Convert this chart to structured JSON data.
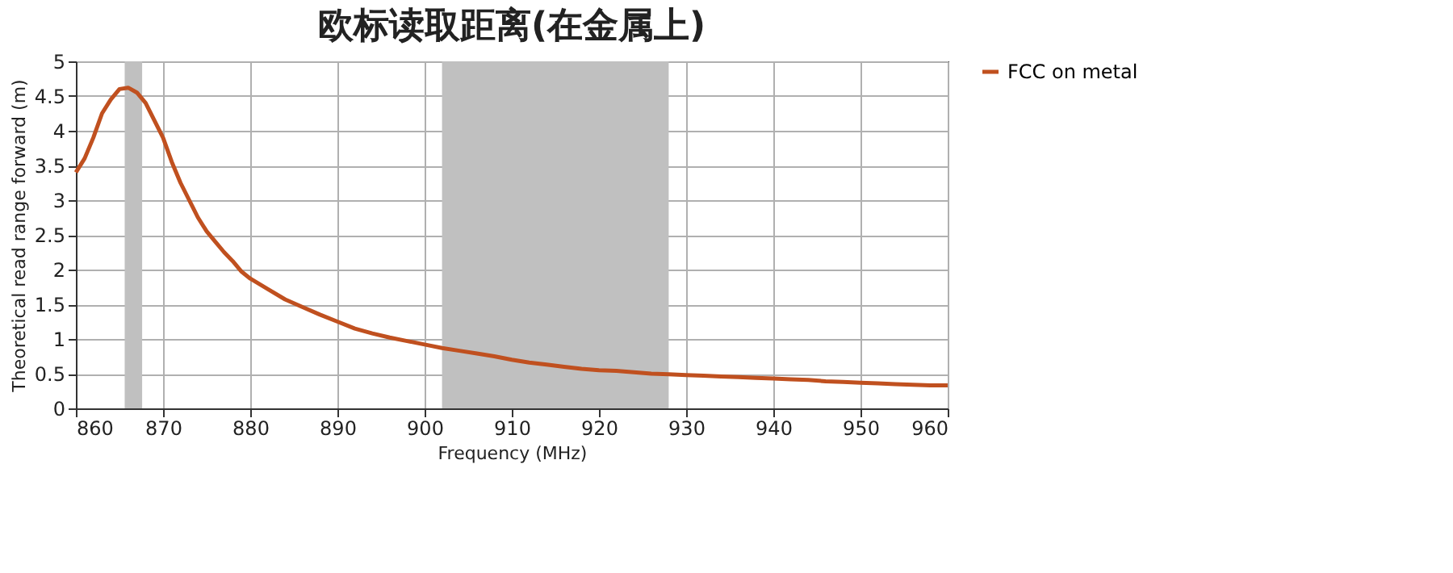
{
  "chart_data": {
    "type": "line",
    "title": "欧标读取距离(在金属上)",
    "xlabel": "Frequency (MHz)",
    "ylabel": "Theoretical read range forward (m)",
    "x": [
      860,
      861,
      862,
      863,
      864,
      865,
      866,
      867,
      868,
      869,
      870,
      871,
      872,
      873,
      874,
      875,
      876,
      877,
      878,
      879,
      880,
      882,
      884,
      886,
      888,
      890,
      892,
      894,
      896,
      898,
      900,
      902,
      904,
      906,
      908,
      910,
      912,
      914,
      916,
      918,
      920,
      922,
      924,
      926,
      928,
      930,
      932,
      934,
      936,
      938,
      940,
      942,
      944,
      946,
      948,
      950,
      952,
      954,
      956,
      958,
      960
    ],
    "series": [
      {
        "name": "FCC on metal",
        "color": "#c0501f",
        "values": [
          3.4,
          3.6,
          3.9,
          4.25,
          4.45,
          4.6,
          4.62,
          4.55,
          4.4,
          4.15,
          3.9,
          3.55,
          3.25,
          3.0,
          2.75,
          2.55,
          2.4,
          2.25,
          2.12,
          1.97,
          1.87,
          1.72,
          1.57,
          1.46,
          1.35,
          1.25,
          1.15,
          1.08,
          1.02,
          0.97,
          0.92,
          0.87,
          0.83,
          0.79,
          0.75,
          0.7,
          0.66,
          0.63,
          0.6,
          0.57,
          0.55,
          0.54,
          0.52,
          0.5,
          0.49,
          0.48,
          0.47,
          0.46,
          0.45,
          0.44,
          0.43,
          0.42,
          0.41,
          0.39,
          0.38,
          0.37,
          0.36,
          0.35,
          0.34,
          0.33,
          0.33
        ]
      }
    ],
    "xlim": [
      860,
      960
    ],
    "xticks": [
      860,
      870,
      880,
      890,
      900,
      910,
      920,
      930,
      940,
      950,
      960
    ],
    "ylim": [
      0,
      5
    ],
    "yticks": [
      0,
      0.5,
      1,
      1.5,
      2,
      2.5,
      3,
      3.5,
      4,
      4.5,
      5
    ],
    "bands": [
      {
        "axis": "x",
        "from": 865.6,
        "to": 867.6,
        "color": "#c0c0c0"
      },
      {
        "axis": "x",
        "from": 902,
        "to": 928,
        "color": "#c0c0c0"
      }
    ],
    "grid": true,
    "legend": "right",
    "marker": "none",
    "line_style": "solid"
  }
}
